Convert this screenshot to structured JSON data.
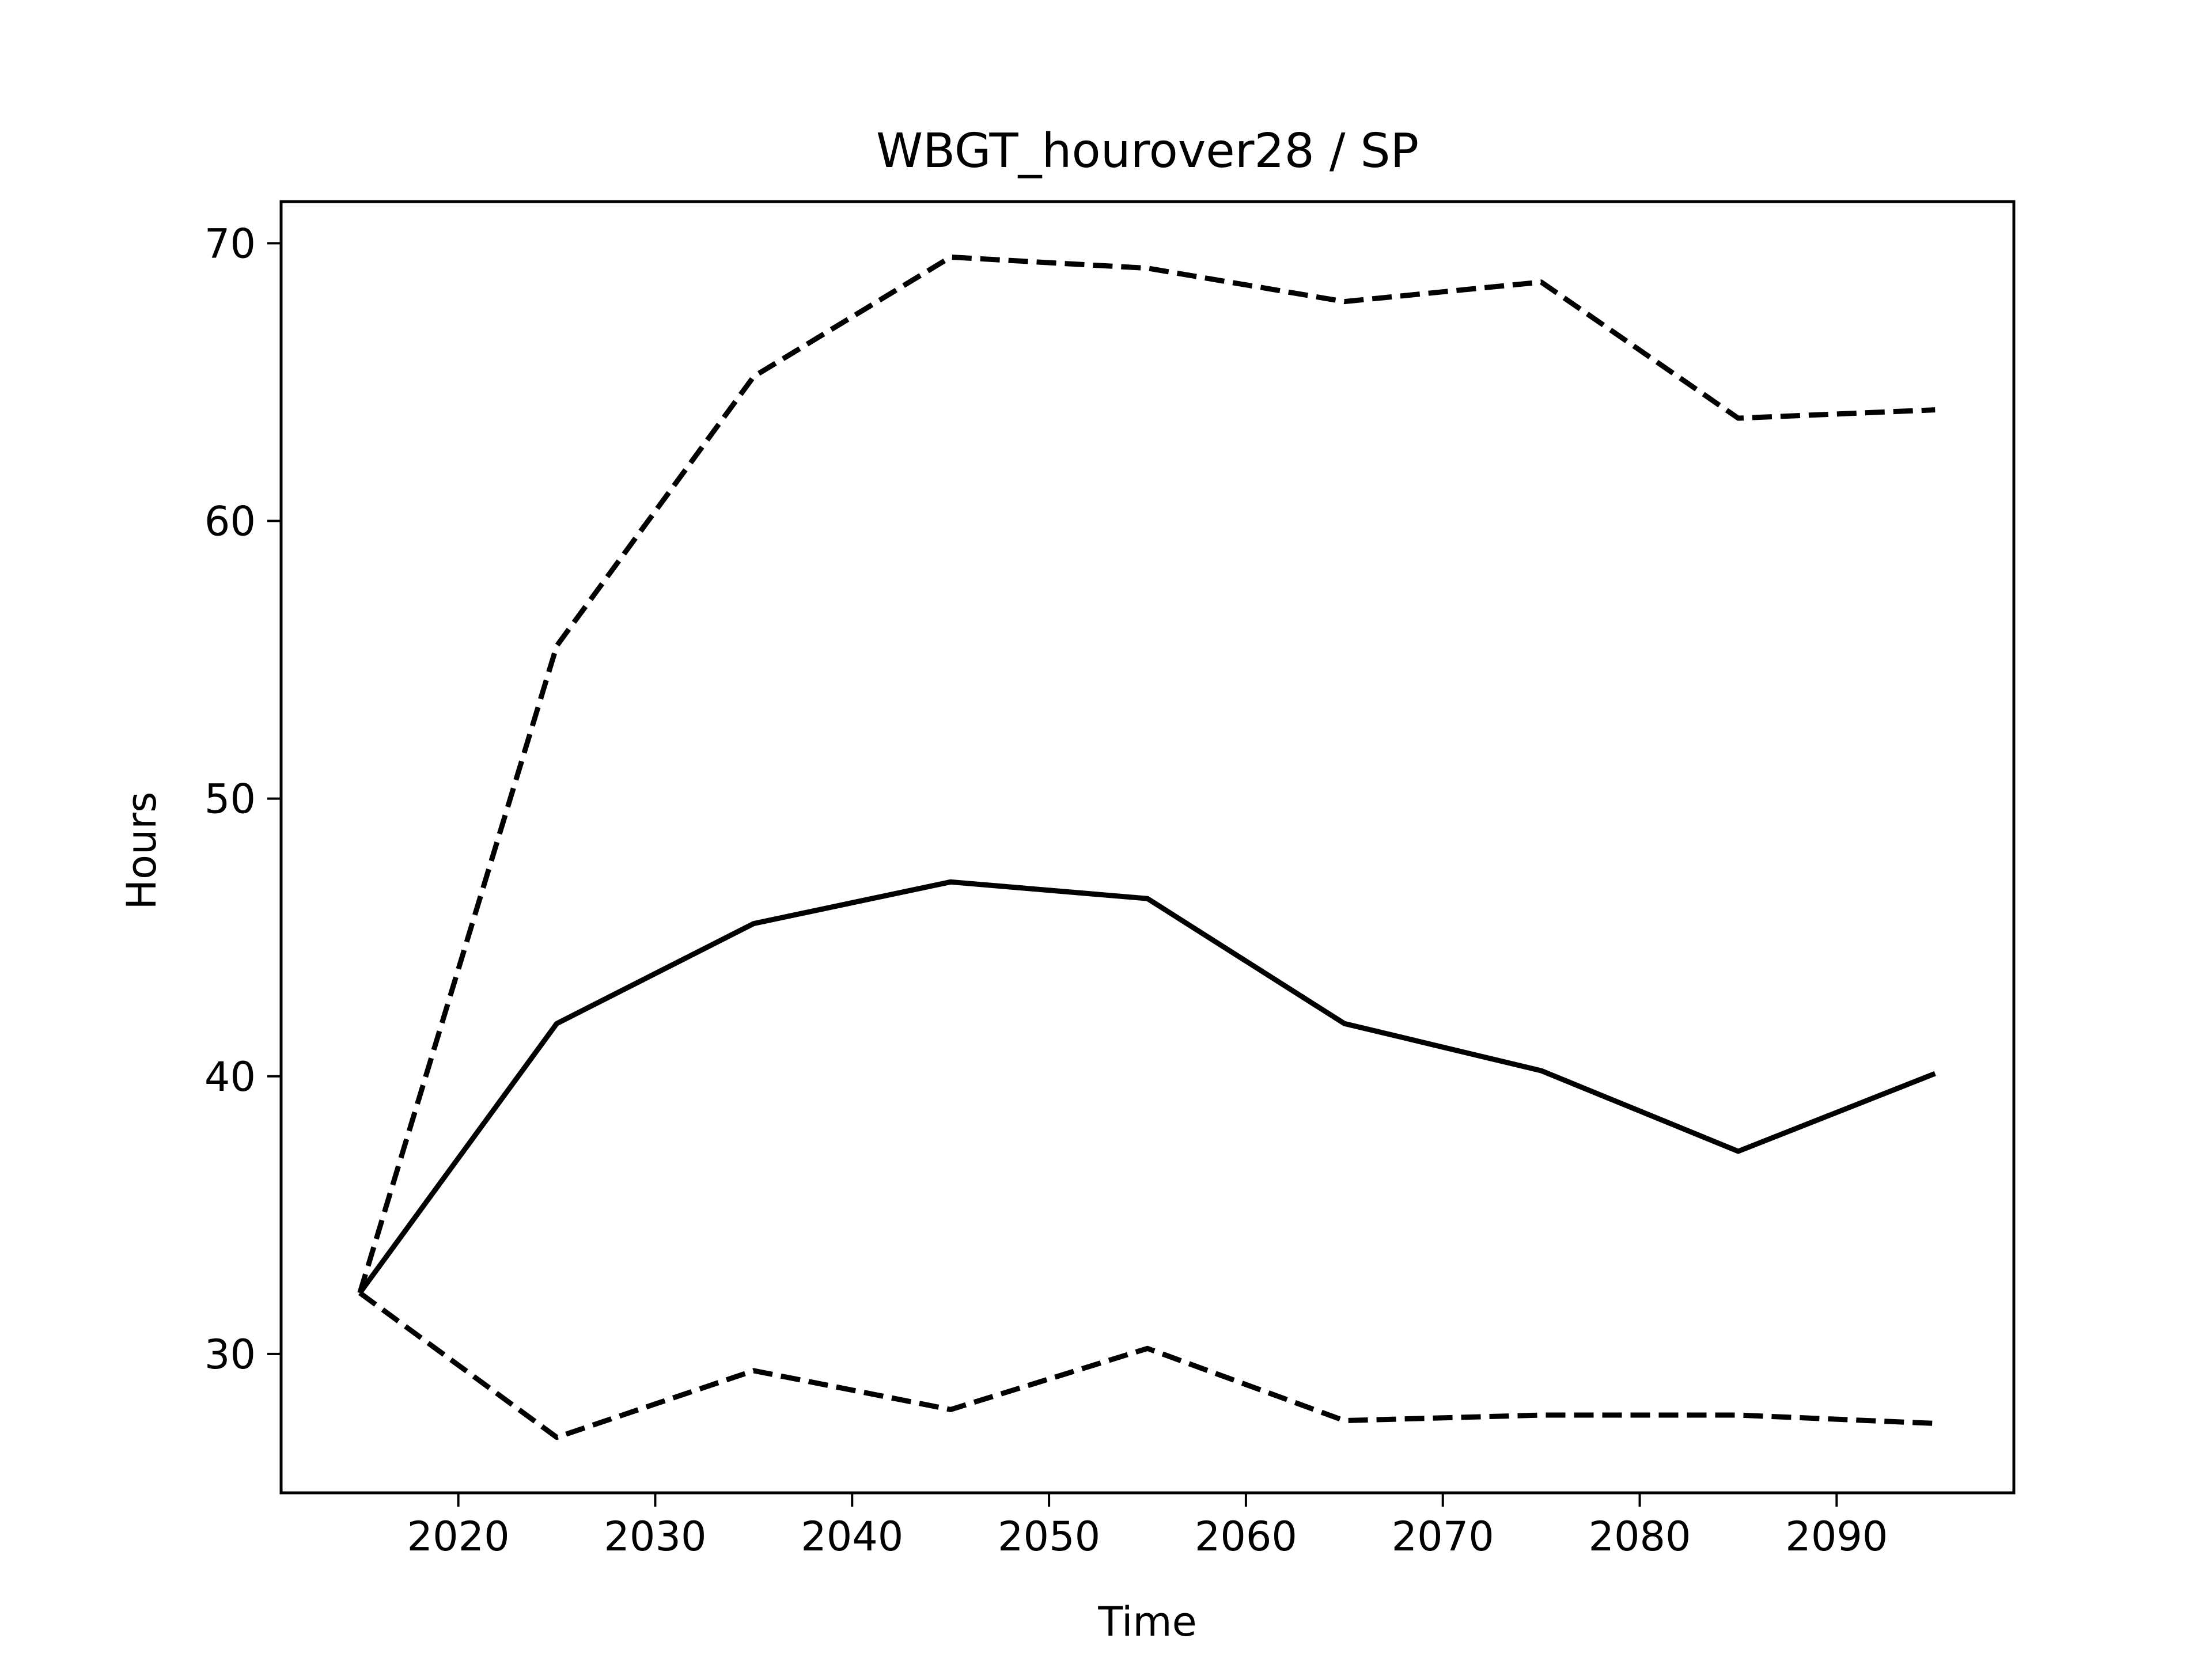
{
  "chart_data": {
    "type": "line",
    "title": "WBGT_hourover28 / SP",
    "xlabel": "Time",
    "ylabel": "Hours",
    "xlim": [
      2011,
      2099
    ],
    "ylim": [
      25,
      71.5
    ],
    "x": [
      2015,
      2025,
      2035,
      2045,
      2055,
      2065,
      2075,
      2085,
      2095
    ],
    "xticks": [
      2020,
      2030,
      2040,
      2050,
      2060,
      2070,
      2080,
      2090
    ],
    "yticks": [
      30,
      40,
      50,
      60,
      70
    ],
    "grid": false,
    "legend": "none",
    "series": [
      {
        "style": "dashed",
        "color": "#000000",
        "values": [
          32.2,
          55.5,
          65.2,
          69.5,
          69.1,
          67.9,
          68.6,
          63.7,
          64.0
        ]
      },
      {
        "style": "solid",
        "color": "#000000",
        "values": [
          32.2,
          41.9,
          45.5,
          47.0,
          46.4,
          41.9,
          40.2,
          37.3,
          40.1
        ]
      },
      {
        "style": "dashed",
        "color": "#000000",
        "values": [
          32.2,
          27.0,
          29.4,
          28.0,
          30.2,
          27.6,
          27.8,
          27.8,
          27.5
        ]
      }
    ]
  }
}
